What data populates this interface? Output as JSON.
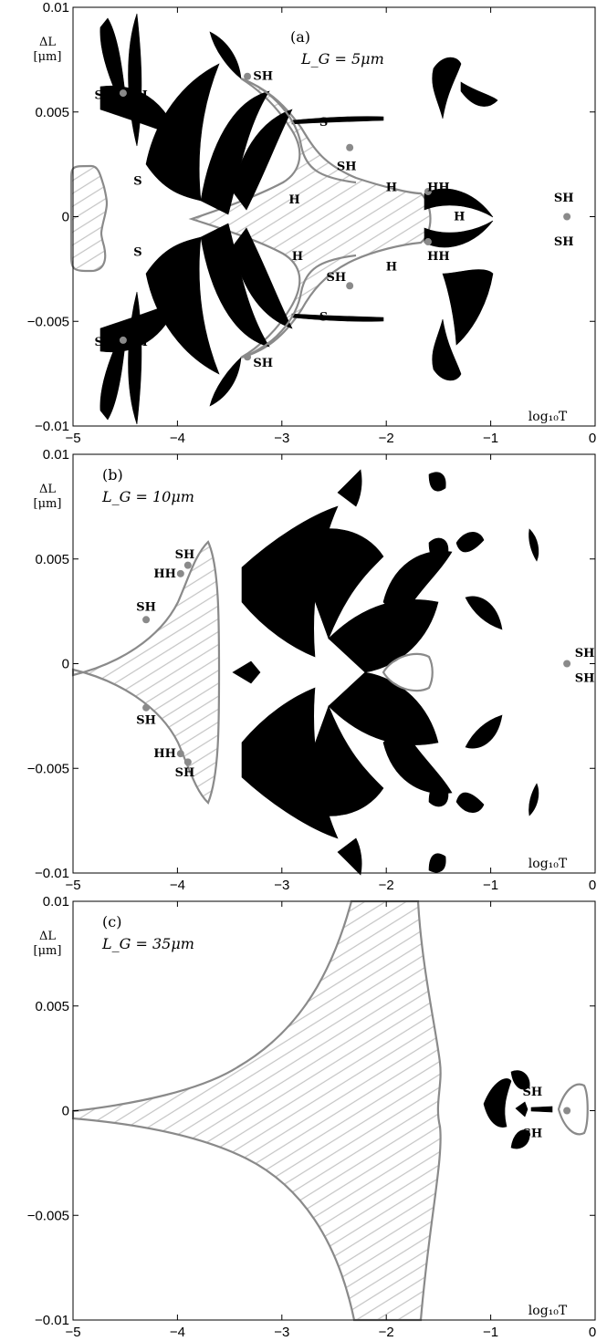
{
  "chart_data": [
    {
      "type": "scatter",
      "panel_label": "(a)",
      "param_label": "L_G = 5μm",
      "ylabel_top": "ΔL",
      "ylabel_unit": "[μm]",
      "xlabel": "log₁₀T",
      "xlim": [
        -5,
        0
      ],
      "ylim": [
        -0.01,
        0.01
      ],
      "xticks": [
        -5,
        -4,
        -3,
        -2,
        -1,
        0
      ],
      "xtick_labels": [
        "−5",
        "−4",
        "−3",
        "−2",
        "−1",
        "0"
      ],
      "yticks": [
        0.01,
        0.005,
        0,
        -0.005,
        -0.01
      ],
      "ytick_labels": [
        "0.01",
        "0.005",
        "0",
        "−0.005",
        "−0.01"
      ],
      "points": [
        {
          "x": -4.52,
          "y": 0.0059
        },
        {
          "x": -4.52,
          "y": -0.0059
        },
        {
          "x": -3.33,
          "y": 0.0067
        },
        {
          "x": -3.33,
          "y": -0.0067
        },
        {
          "x": -2.35,
          "y": 0.0033
        },
        {
          "x": -2.35,
          "y": -0.0033
        },
        {
          "x": -1.6,
          "y": 0.0012
        },
        {
          "x": -1.6,
          "y": -0.0012
        },
        {
          "x": -0.27,
          "y": 0.0
        }
      ],
      "annotations": [
        {
          "text": "SH",
          "x": -4.7,
          "y": 0.0058
        },
        {
          "text": "SH",
          "x": -4.38,
          "y": 0.0058
        },
        {
          "text": "SH",
          "x": -4.7,
          "y": -0.006
        },
        {
          "text": "SH",
          "x": -4.38,
          "y": -0.006
        },
        {
          "text": "S",
          "x": -4.38,
          "y": 0.0017
        },
        {
          "text": "S",
          "x": -4.38,
          "y": -0.0017
        },
        {
          "text": "SH",
          "x": -3.18,
          "y": 0.0067
        },
        {
          "text": "SH",
          "x": -3.18,
          "y": -0.007
        },
        {
          "text": "S",
          "x": -2.6,
          "y": 0.0045
        },
        {
          "text": "S",
          "x": -2.6,
          "y": -0.0048
        },
        {
          "text": "SH",
          "x": -2.38,
          "y": 0.0024
        },
        {
          "text": "SH",
          "x": -2.48,
          "y": -0.0029
        },
        {
          "text": "H",
          "x": -2.88,
          "y": 0.0008
        },
        {
          "text": "H",
          "x": -2.85,
          "y": -0.0019
        },
        {
          "text": "H",
          "x": -1.95,
          "y": 0.0014
        },
        {
          "text": "H",
          "x": -1.95,
          "y": -0.0024
        },
        {
          "text": "HH",
          "x": -1.5,
          "y": 0.0014
        },
        {
          "text": "H",
          "x": -1.3,
          "y": 0.0
        },
        {
          "text": "HH",
          "x": -1.5,
          "y": -0.0019
        },
        {
          "text": "SH",
          "x": -0.3,
          "y": 0.0009
        },
        {
          "text": "SH",
          "x": -0.3,
          "y": -0.0012
        }
      ]
    },
    {
      "type": "scatter",
      "panel_label": "(b)",
      "param_label": "L_G = 10μm",
      "ylabel_top": "ΔL",
      "ylabel_unit": "[μm]",
      "xlabel": "log₁₀T",
      "xlim": [
        -5,
        0
      ],
      "ylim": [
        -0.01,
        0.01
      ],
      "xticks": [
        -5,
        -4,
        -3,
        -2,
        -1,
        0
      ],
      "xtick_labels": [
        "−5",
        "−4",
        "−3",
        "−2",
        "−1",
        "0"
      ],
      "yticks": [
        0.01,
        0.005,
        0,
        -0.005,
        -0.01
      ],
      "ytick_labels": [
        "0.01",
        "0.005",
        "0",
        "−0.005",
        "−0.01"
      ],
      "points": [
        {
          "x": -4.3,
          "y": 0.0021
        },
        {
          "x": -4.3,
          "y": -0.0021
        },
        {
          "x": -3.97,
          "y": 0.0043
        },
        {
          "x": -3.97,
          "y": -0.0043
        },
        {
          "x": -3.9,
          "y": 0.0047
        },
        {
          "x": -3.9,
          "y": -0.0047
        },
        {
          "x": -0.27,
          "y": 0.0
        }
      ],
      "annotations": [
        {
          "text": "SH",
          "x": -3.93,
          "y": 0.0052
        },
        {
          "text": "HH",
          "x": -4.12,
          "y": 0.0043
        },
        {
          "text": "SH",
          "x": -4.3,
          "y": 0.0027
        },
        {
          "text": "SH",
          "x": -4.3,
          "y": -0.0027
        },
        {
          "text": "HH",
          "x": -4.12,
          "y": -0.0043
        },
        {
          "text": "SH",
          "x": -3.93,
          "y": -0.0052
        },
        {
          "text": "SH",
          "x": -0.1,
          "y": 0.0005
        },
        {
          "text": "SH",
          "x": -0.1,
          "y": -0.0007
        }
      ]
    },
    {
      "type": "scatter",
      "panel_label": "(c)",
      "param_label": "L_G = 35μm",
      "ylabel_top": "ΔL",
      "ylabel_unit": "[μm]",
      "xlabel": "log₁₀T",
      "xlim": [
        -5,
        0
      ],
      "ylim": [
        -0.01,
        0.01
      ],
      "xticks": [
        -5,
        -4,
        -3,
        -2,
        -1,
        0
      ],
      "xtick_labels": [
        "−5",
        "−4",
        "−3",
        "−2",
        "−1",
        "0"
      ],
      "yticks": [
        0.01,
        0.005,
        0,
        -0.005,
        -0.01
      ],
      "ytick_labels": [
        "0.01",
        "0.005",
        "0",
        "−0.005",
        "−0.01"
      ],
      "points": [
        {
          "x": -0.27,
          "y": 0.0
        }
      ],
      "annotations": [
        {
          "text": "SH",
          "x": -0.6,
          "y": 0.0009
        },
        {
          "text": "SH",
          "x": -0.6,
          "y": -0.0011
        }
      ]
    }
  ],
  "colors": {
    "curve": "#8a8a8a",
    "hatch": "#c4c4c4",
    "chaos": "#000000",
    "axes": "#000000"
  }
}
